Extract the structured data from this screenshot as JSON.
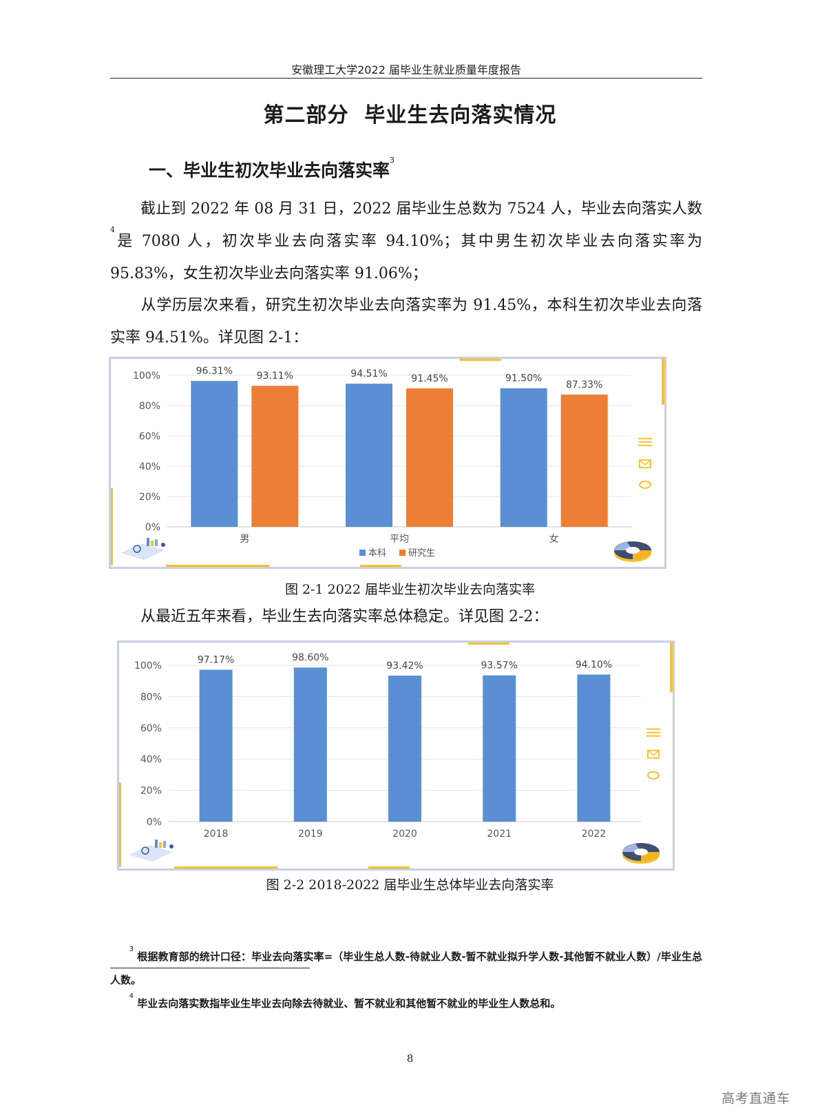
{
  "header": {
    "running_title": "安徽理工大学2022 届毕业生就业质量年度报告"
  },
  "part_title": "第二部分  毕业生去向落实情况",
  "section": {
    "title": "一、毕业生初次毕业去向落实率",
    "footnote_mark": "3"
  },
  "paragraphs": {
    "p1_a": "截止到 2022 年 08 月 31 日，2022 届毕业生总数为 7524 人，毕业去向落实人数",
    "p1_mark": "4",
    "p1_b": "是 7080 人，初次毕业去向落实率 94.10%；其中男生初次毕业去向落实率为 95.83%，女生初次毕业去向落实率 91.06%；",
    "p2": "从学历层次来看，研究生初次毕业去向落实率为 91.45%，本科生初次毕业去向落实率 94.51%。详见图 2-1：",
    "p3": "从最近五年来看，毕业生去向落实率总体稳定。详见图 2-2："
  },
  "figures": {
    "fig1_caption": "图 2-1  2022 届毕业生初次毕业去向落实率",
    "fig2_caption": "图 2-2  2018-2022 届毕业生总体毕业去向落实率"
  },
  "colors": {
    "blue": "#5b8fd4",
    "orange": "#ec7f35",
    "grid": "#e3e3e3",
    "frame": "#c9cfe3",
    "accent_yellow": "#f7c12b"
  },
  "chart_data": [
    {
      "type": "bar",
      "categories": [
        "男",
        "平均",
        "女"
      ],
      "series": [
        {
          "name": "本科",
          "values": [
            96.31,
            94.51,
            91.5
          ],
          "labels": [
            "96.31%",
            "94.51%",
            "91.50%"
          ],
          "color": "#5b8fd4"
        },
        {
          "name": "研究生",
          "values": [
            93.11,
            91.45,
            87.33
          ],
          "labels": [
            "93.11%",
            "91.45%",
            "87.33%"
          ],
          "color": "#ec7f35"
        }
      ],
      "yticks": [
        "0%",
        "20%",
        "40%",
        "60%",
        "80%",
        "100%"
      ],
      "ylim": [
        0,
        100
      ],
      "legend": "bottom"
    },
    {
      "type": "bar",
      "categories": [
        "2018",
        "2019",
        "2020",
        "2021",
        "2022"
      ],
      "series": [
        {
          "values": [
            97.17,
            98.6,
            93.42,
            93.57,
            94.1
          ],
          "labels": [
            "97.17%",
            "98.60%",
            "93.42%",
            "93.57%",
            "94.10%"
          ],
          "color": "#5b8fd4"
        }
      ],
      "yticks": [
        "0%",
        "20%",
        "40%",
        "60%",
        "80%",
        "100%"
      ],
      "ylim": [
        0,
        100
      ]
    }
  ],
  "footnotes": [
    {
      "mark": "3",
      "text": "根据教育部的统计口径：毕业去向落实率=（毕业生总人数-待就业人数-暂不就业拟升学人数-其他暂不就业人数）/毕业生总人数。"
    },
    {
      "mark": "4",
      "text": "毕业去向落实数指毕业生毕业去向除去待就业、暂不就业和其他暂不就业的毕业生人数总和。"
    }
  ],
  "page_number": "8",
  "watermark": "高考直通车"
}
